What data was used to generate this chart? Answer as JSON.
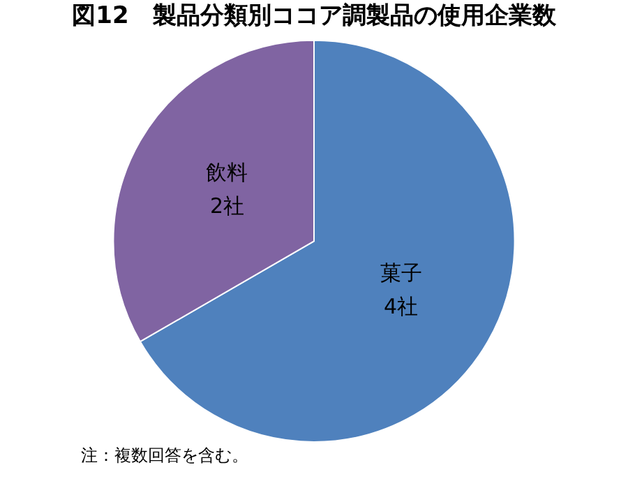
{
  "chart_data": {
    "type": "pie",
    "title": "図12　製品分類別ココア調製品の使用企業数",
    "categories": [
      "菓子",
      "飲料"
    ],
    "values": [
      4,
      2
    ],
    "value_labels": [
      "4社",
      "2社"
    ],
    "colors": [
      "#4f81bd",
      "#8064a2"
    ],
    "legend": false,
    "annotations": [
      "注：複数回答を含む。"
    ]
  }
}
